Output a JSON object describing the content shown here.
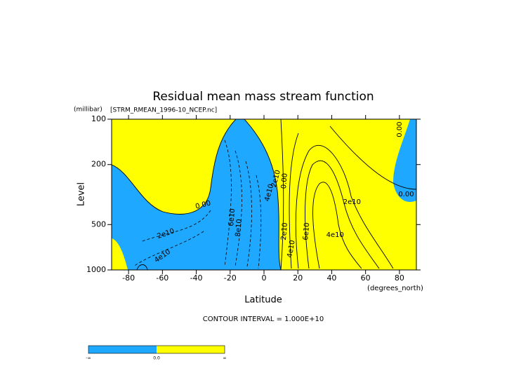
{
  "chart_data": {
    "type": "contour",
    "title": "Residual mean mass stream function",
    "subtitle": "[STRM_RMEAN_1996-10_NCEP.nc]",
    "y_unit": "(millibar)",
    "x_unit": "(degrees_north)",
    "xlabel": "Latitude",
    "ylabel": "Level",
    "xlim": [
      -90,
      90
    ],
    "xticks": [
      -80,
      -60,
      -40,
      -20,
      0,
      20,
      40,
      60,
      80
    ],
    "ylim": [
      1000,
      100
    ],
    "yticks": [
      100,
      200,
      500,
      1000
    ],
    "ylog": true,
    "footnote": "CONTOUR INTERVAL = 1.000E+10",
    "colors": [
      "#1ea8ff",
      "#ffff00"
    ],
    "colorbar_labels": [
      "-∞",
      "0.0",
      "∞"
    ],
    "contour_labels": [
      {
        "text": "0.00",
        "x": -36,
        "y": 370
      },
      {
        "text": "2e10",
        "x": -58,
        "y": 574
      },
      {
        "text": "4e10",
        "x": -60,
        "y": 808
      },
      {
        "text": "6e10",
        "x": -19,
        "y": 448
      },
      {
        "text": "8e10",
        "x": -15,
        "y": 526
      },
      {
        "text": "2e10",
        "x": 7,
        "y": 248
      },
      {
        "text": "4e10",
        "x": 3,
        "y": 307
      },
      {
        "text": "0.00",
        "x": 12,
        "y": 257
      },
      {
        "text": "2e10",
        "x": 12,
        "y": 555
      },
      {
        "text": "4e10",
        "x": 16,
        "y": 725
      },
      {
        "text": "6e10",
        "x": 25,
        "y": 555
      },
      {
        "text": "4e10",
        "x": 42,
        "y": 584
      },
      {
        "text": "2e10",
        "x": 52,
        "y": 354
      },
      {
        "text": "0.00",
        "x": 84,
        "y": 314
      },
      {
        "text": "0.00",
        "x": 80,
        "y": 117
      }
    ]
  }
}
